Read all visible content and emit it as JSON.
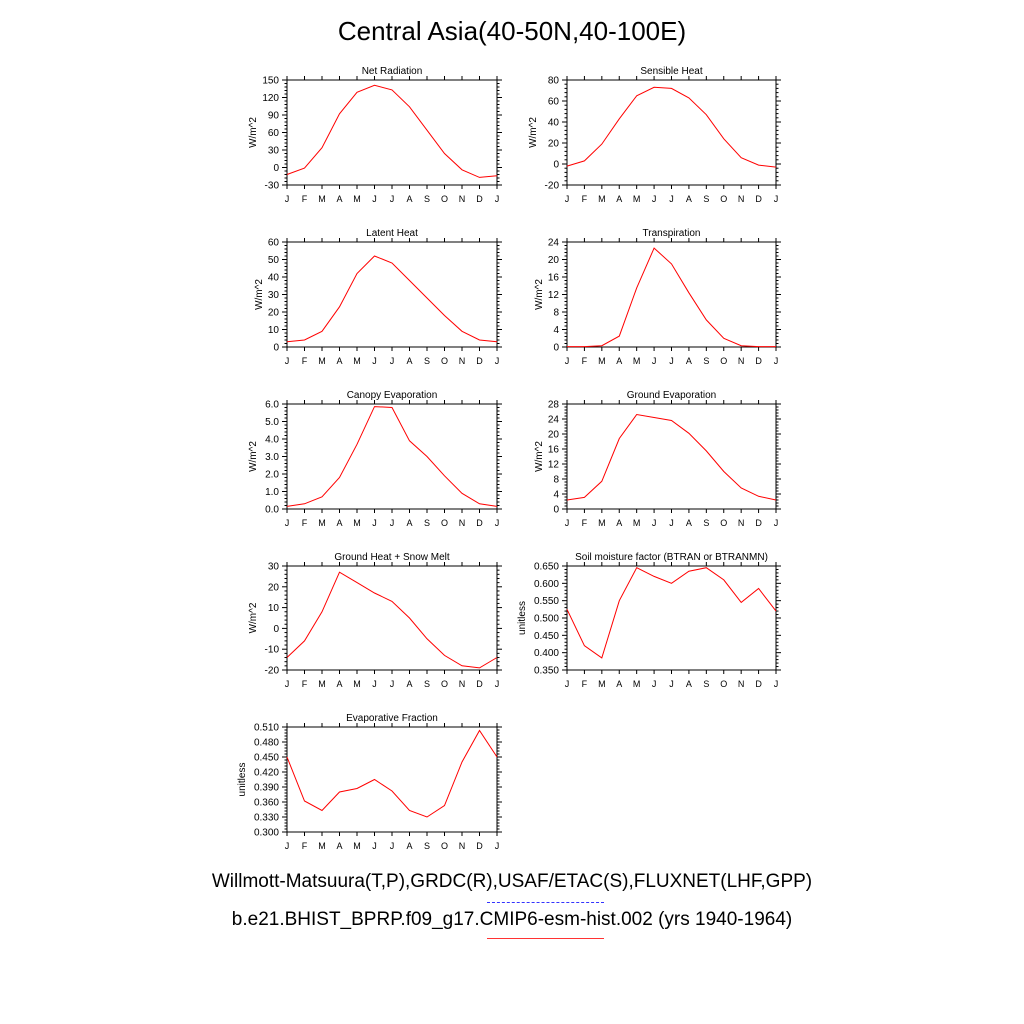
{
  "title": "Central Asia(40-50N,40-100E)",
  "legend": {
    "observed": "Willmott-Matsuura(T,P),GRDC(R),USAF/ETAC(S),FLUXNET(LHF,GPP)",
    "model": "b.e21.BHIST_BPRP.f09_g17.CMIP6-esm-hist.002 (yrs 1940-1964)",
    "observed_color": "#3333ff",
    "model_color": "#ff0000"
  },
  "chart_data": [
    {
      "type": "line",
      "title": "Net Radiation",
      "ylabel": "W/m^2",
      "x": [
        "J",
        "F",
        "M",
        "A",
        "M",
        "J",
        "J",
        "A",
        "S",
        "O",
        "N",
        "D",
        "J"
      ],
      "ylim": [
        -30,
        150
      ],
      "yticks": [
        "-30",
        "0",
        "30",
        "60",
        "90",
        "120",
        "150"
      ],
      "grid": false,
      "series": [
        {
          "values": [
            -12,
            -1,
            34,
            92,
            129,
            141,
            133,
            104,
            64,
            24,
            -4,
            -17,
            -14
          ]
        }
      ]
    },
    {
      "type": "line",
      "title": "Sensible Heat",
      "ylabel": "W/m^2",
      "x": [
        "J",
        "F",
        "M",
        "A",
        "M",
        "J",
        "J",
        "A",
        "S",
        "O",
        "N",
        "D",
        "J"
      ],
      "ylim": [
        -20,
        80
      ],
      "yticks": [
        "-20",
        "0",
        "20",
        "40",
        "60",
        "80"
      ],
      "grid": false,
      "series": [
        {
          "values": [
            -2,
            3,
            19,
            43,
            65,
            73,
            72,
            63,
            47,
            24,
            6,
            -1,
            -3
          ]
        }
      ]
    },
    {
      "type": "line",
      "title": "Latent Heat",
      "ylabel": "W/m^2",
      "x": [
        "J",
        "F",
        "M",
        "A",
        "M",
        "J",
        "J",
        "A",
        "S",
        "O",
        "N",
        "D",
        "J"
      ],
      "ylim": [
        0,
        60
      ],
      "yticks": [
        "0",
        "10",
        "20",
        "30",
        "40",
        "50",
        "60"
      ],
      "grid": false,
      "series": [
        {
          "values": [
            3,
            4,
            9,
            23,
            42,
            52,
            48,
            38,
            28,
            18,
            9,
            4,
            3
          ]
        }
      ]
    },
    {
      "type": "line",
      "title": "Transpiration",
      "ylabel": "W/m^2",
      "x": [
        "J",
        "F",
        "M",
        "A",
        "M",
        "J",
        "J",
        "A",
        "S",
        "O",
        "N",
        "D",
        "J"
      ],
      "ylim": [
        0,
        24
      ],
      "yticks": [
        "0",
        "4",
        "8",
        "12",
        "16",
        "20",
        "24"
      ],
      "grid": false,
      "series": [
        {
          "values": [
            0.1,
            0.1,
            0.3,
            2.5,
            13.5,
            22.6,
            19,
            12.4,
            6.2,
            2,
            0.3,
            0.1,
            0.1
          ]
        }
      ]
    },
    {
      "type": "line",
      "title": "Canopy Evaporation",
      "ylabel": "W/m^2",
      "x": [
        "J",
        "F",
        "M",
        "A",
        "M",
        "J",
        "J",
        "A",
        "S",
        "O",
        "N",
        "D",
        "J"
      ],
      "ylim": [
        0,
        6
      ],
      "yticks": [
        "0.0",
        "1.0",
        "2.0",
        "3.0",
        "4.0",
        "5.0",
        "6.0"
      ],
      "grid": false,
      "series": [
        {
          "values": [
            0.15,
            0.3,
            0.7,
            1.8,
            3.7,
            5.85,
            5.8,
            3.9,
            3.0,
            1.9,
            0.9,
            0.3,
            0.15
          ]
        }
      ]
    },
    {
      "type": "line",
      "title": "Ground Evaporation",
      "ylabel": "W/m^2",
      "x": [
        "J",
        "F",
        "M",
        "A",
        "M",
        "J",
        "J",
        "A",
        "S",
        "O",
        "N",
        "D",
        "J"
      ],
      "ylim": [
        0,
        28
      ],
      "yticks": [
        "0",
        "4",
        "8",
        "12",
        "16",
        "20",
        "24",
        "28"
      ],
      "grid": false,
      "series": [
        {
          "values": [
            2.4,
            3.1,
            7.4,
            18.8,
            25.2,
            24.4,
            23.6,
            20.2,
            15.5,
            10,
            5.6,
            3.4,
            2.4
          ]
        }
      ]
    },
    {
      "type": "line",
      "title": "Ground Heat + Snow Melt",
      "ylabel": "W/m^2",
      "x": [
        "J",
        "F",
        "M",
        "A",
        "M",
        "J",
        "J",
        "A",
        "S",
        "O",
        "N",
        "D",
        "J"
      ],
      "ylim": [
        -20,
        30
      ],
      "yticks": [
        "-20",
        "-10",
        "0",
        "10",
        "20",
        "30"
      ],
      "grid": false,
      "series": [
        {
          "values": [
            -14,
            -6,
            8,
            27,
            22,
            17,
            13,
            5,
            -5,
            -13,
            -18,
            -19,
            -14
          ]
        }
      ]
    },
    {
      "type": "line",
      "title": "Soil moisture factor (BTRAN or BTRANMN)",
      "ylabel": "unitless",
      "x": [
        "J",
        "F",
        "M",
        "A",
        "M",
        "J",
        "J",
        "A",
        "S",
        "O",
        "N",
        "D",
        "J"
      ],
      "ylim": [
        0.35,
        0.65
      ],
      "yticks": [
        "0.350",
        "0.400",
        "0.450",
        "0.500",
        "0.550",
        "0.600",
        "0.650"
      ],
      "grid": false,
      "series": [
        {
          "values": [
            0.525,
            0.42,
            0.385,
            0.55,
            0.645,
            0.62,
            0.6,
            0.635,
            0.645,
            0.61,
            0.545,
            0.585,
            0.52
          ]
        }
      ]
    },
    {
      "type": "line",
      "title": "Evaporative Fraction",
      "ylabel": "unitless",
      "x": [
        "J",
        "F",
        "M",
        "A",
        "M",
        "J",
        "J",
        "A",
        "S",
        "O",
        "N",
        "D",
        "J"
      ],
      "ylim": [
        0.3,
        0.51
      ],
      "yticks": [
        "0.300",
        "0.330",
        "0.360",
        "0.390",
        "0.420",
        "0.450",
        "0.480",
        "0.510"
      ],
      "grid": false,
      "series": [
        {
          "values": [
            0.45,
            0.362,
            0.343,
            0.38,
            0.387,
            0.405,
            0.382,
            0.343,
            0.33,
            0.353,
            0.44,
            0.503,
            0.45
          ]
        }
      ]
    }
  ]
}
